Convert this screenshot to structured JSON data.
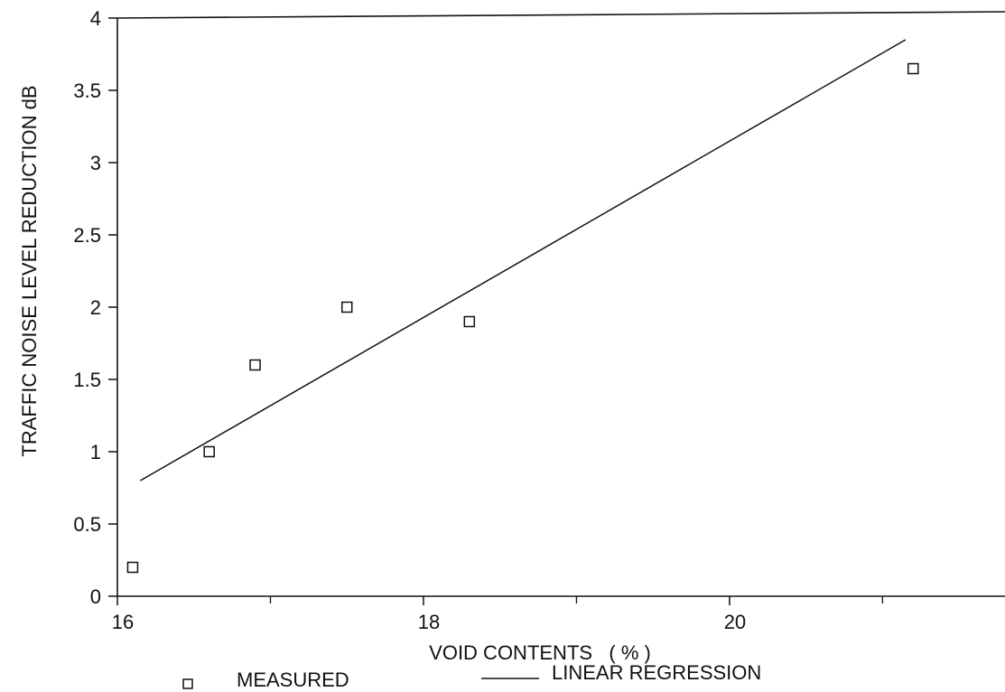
{
  "chart_data": {
    "type": "scatter",
    "xlabel": "VOID CONTENTS   ( % )",
    "ylabel": "TRAFFIC NOISE LEVEL REDUCTION dB",
    "xlim": [
      16,
      21.8
    ],
    "ylim": [
      0,
      4
    ],
    "x_ticks": [
      16,
      18,
      20
    ],
    "x_minor_ticks": [
      17,
      19,
      21
    ],
    "y_ticks": [
      0,
      0.5,
      1,
      1.5,
      2,
      2.5,
      3,
      3.5,
      4
    ],
    "x_tick_labels": [
      "16",
      "18",
      "20"
    ],
    "y_tick_labels": [
      "0",
      "0.5",
      "1",
      "1.5",
      "2",
      "2.5",
      "3",
      "3.5",
      "4"
    ],
    "grid": false,
    "legend_position": "bottom",
    "series": [
      {
        "name": "MEASURED",
        "kind": "markers",
        "marker": "open-square",
        "points": [
          {
            "x": 16.1,
            "y": 0.2
          },
          {
            "x": 16.6,
            "y": 1.0
          },
          {
            "x": 16.9,
            "y": 1.6
          },
          {
            "x": 17.5,
            "y": 2.0
          },
          {
            "x": 18.3,
            "y": 1.9
          },
          {
            "x": 21.2,
            "y": 3.65
          }
        ]
      },
      {
        "name": "LINEAR REGRESSION",
        "kind": "line",
        "points": [
          {
            "x": 16.15,
            "y": 0.8
          },
          {
            "x": 21.15,
            "y": 3.85
          }
        ]
      }
    ]
  }
}
